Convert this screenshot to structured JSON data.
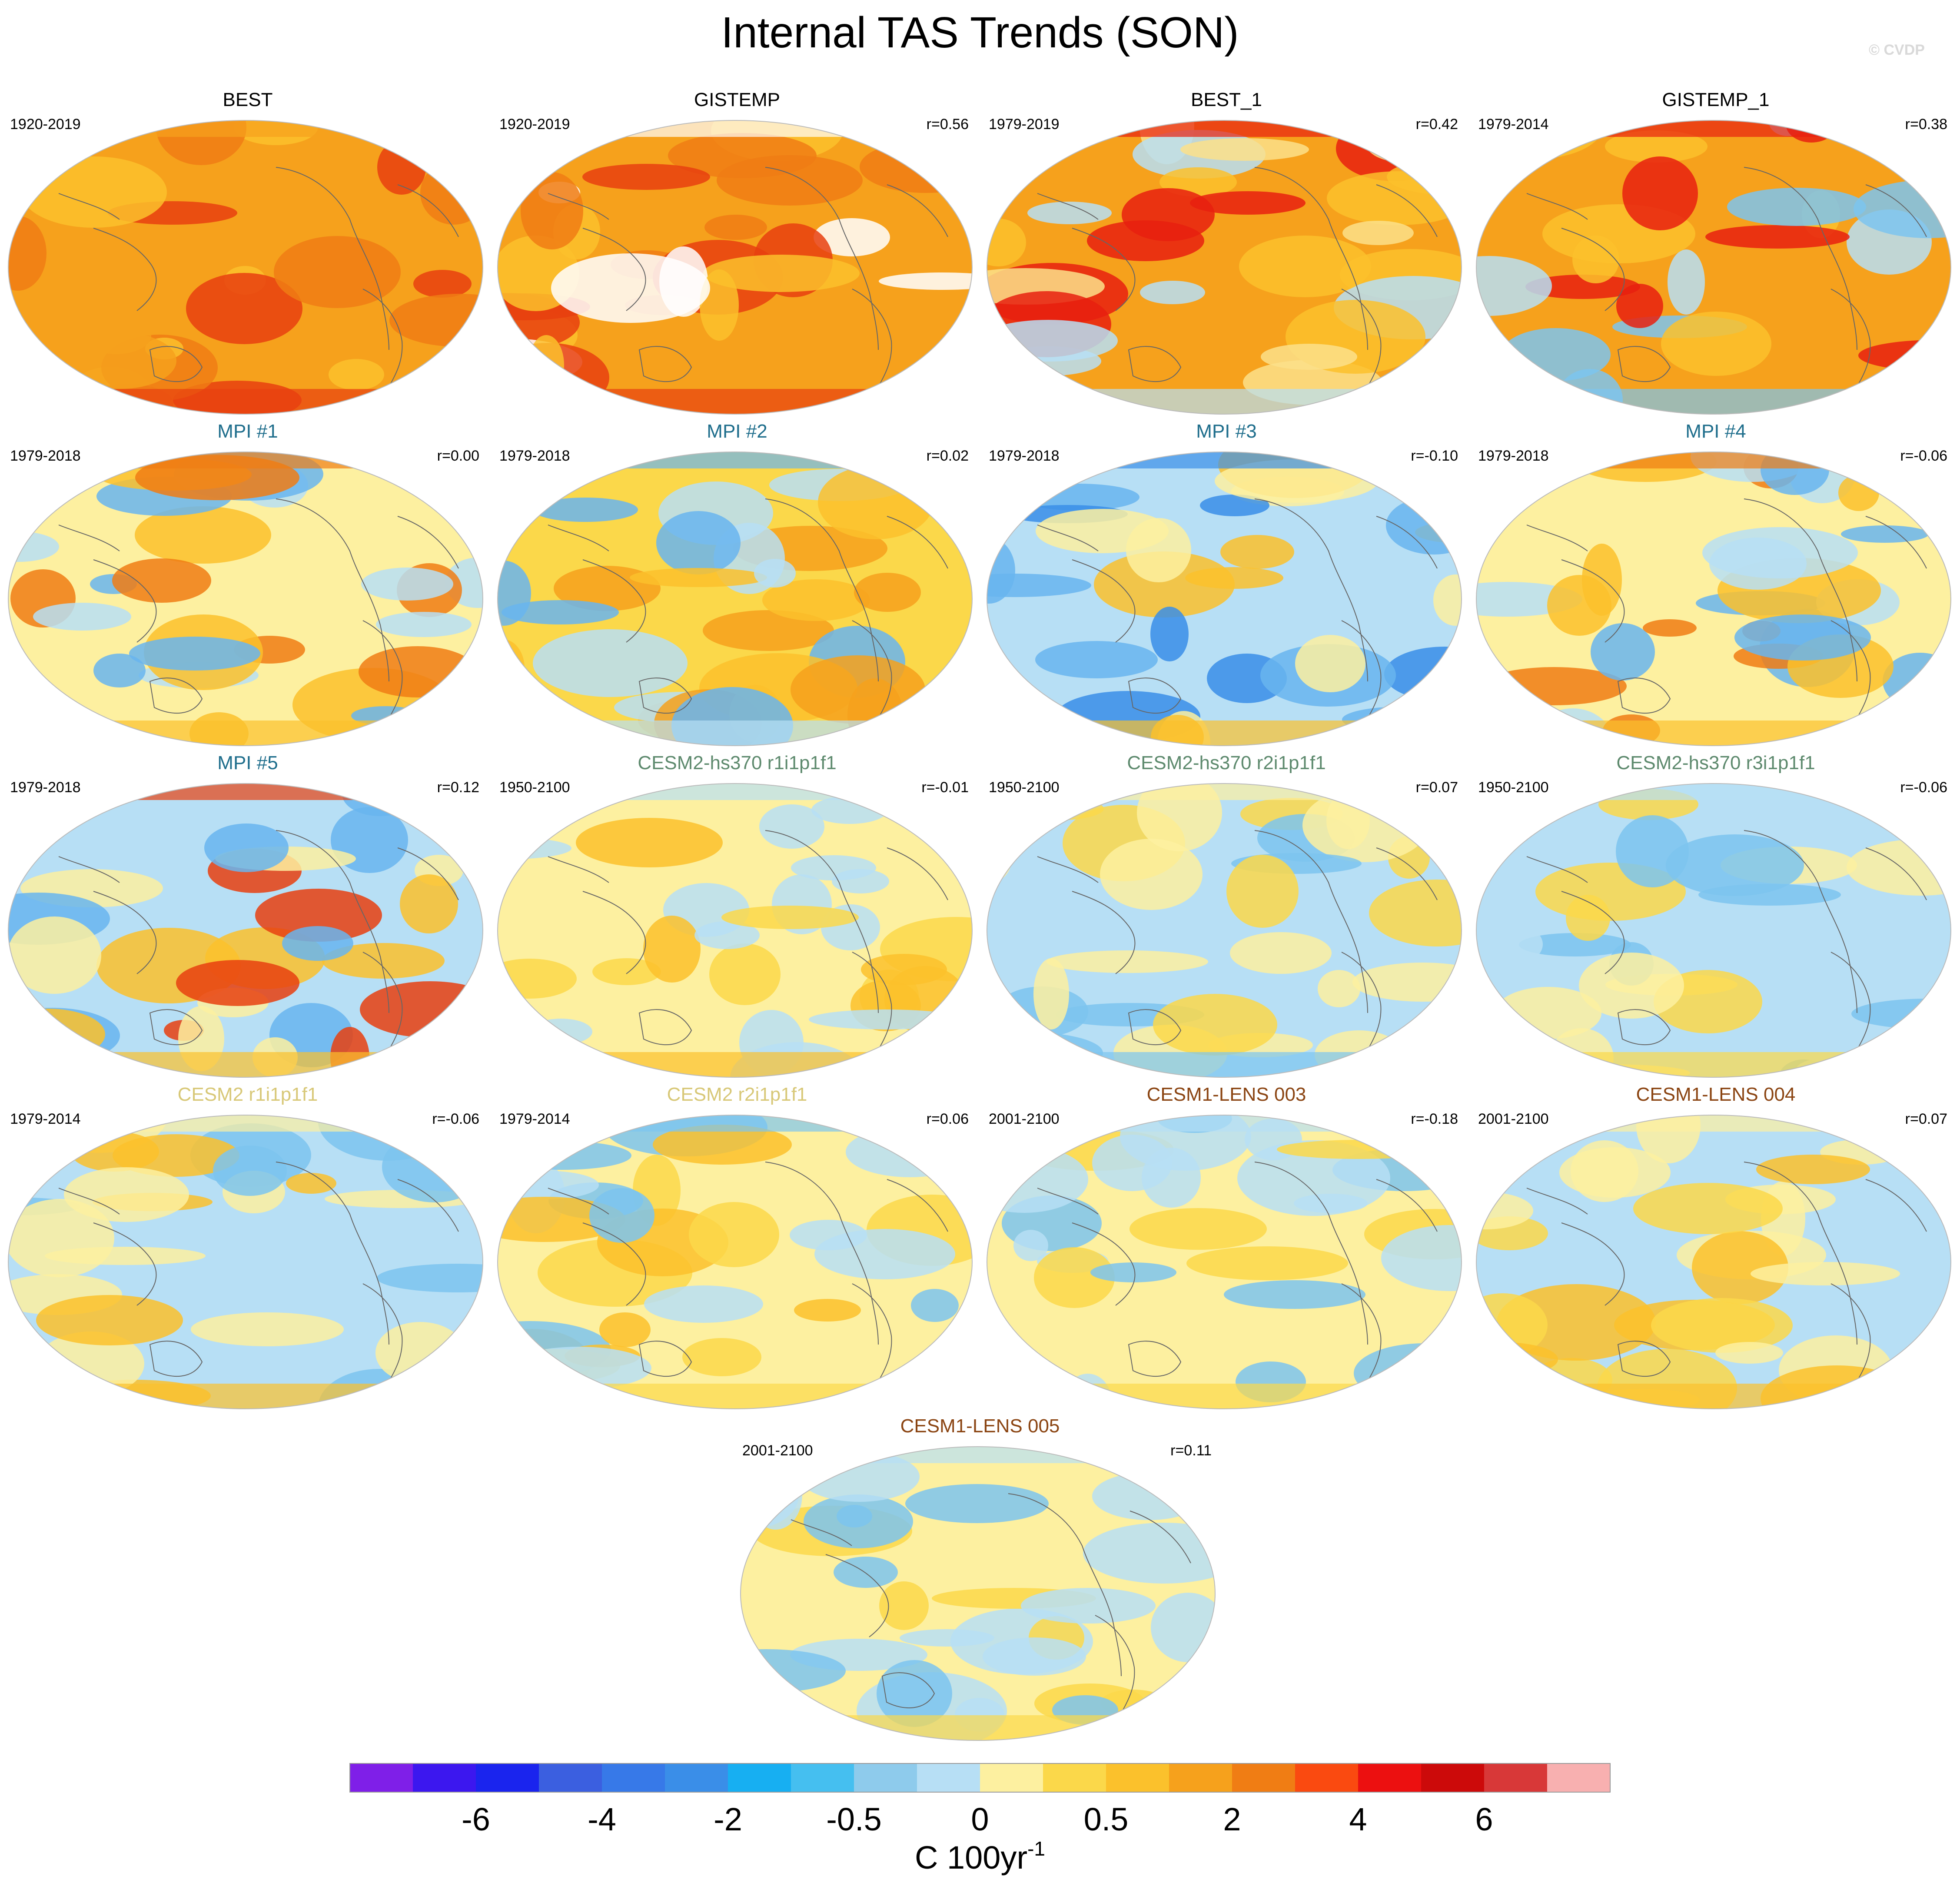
{
  "title": "Internal TAS Trends (SON)",
  "watermark": "© CVDP",
  "panels": [
    {
      "name": "BEST",
      "title_color": "#000000",
      "period": "1920-2019",
      "corr": "",
      "fill": "#f6a11c",
      "mottle": [
        "#fbc12c",
        "#f07d14",
        "#e8400f",
        "#f6a11c"
      ]
    },
    {
      "name": "GISTEMP",
      "title_color": "#000000",
      "period": "1920-2019",
      "corr": "r=0.56",
      "fill": "#f6a11c",
      "mottle": [
        "#fbc12c",
        "#f07d14",
        "#e8400f",
        "#ffffff"
      ]
    },
    {
      "name": "BEST_1",
      "title_color": "#000000",
      "period": "1979-2019",
      "corr": "r=0.42",
      "fill": "#f6a11c",
      "mottle": [
        "#fbc12c",
        "#fbe18a",
        "#b7dff5",
        "#e8200f"
      ]
    },
    {
      "name": "GISTEMP_1",
      "title_color": "#000000",
      "period": "1979-2014",
      "corr": "r=0.38",
      "fill": "#f6a11c",
      "mottle": [
        "#fbc12c",
        "#b7dff5",
        "#7cc4ef",
        "#e8200f"
      ]
    },
    {
      "name": "MPI #1",
      "title_color": "#1f6e8c",
      "period": "1979-2018",
      "corr": "r=0.00",
      "fill": "#fdf0a0",
      "mottle": [
        "#b7dff5",
        "#69b5ee",
        "#fbc12c",
        "#f07d14"
      ]
    },
    {
      "name": "MPI #2",
      "title_color": "#1f6e8c",
      "period": "1979-2018",
      "corr": "r=0.02",
      "fill": "#fbd84a",
      "mottle": [
        "#fbc12c",
        "#f6a11c",
        "#b7dff5",
        "#69b5ee"
      ]
    },
    {
      "name": "MPI #3",
      "title_color": "#1f6e8c",
      "period": "1979-2018",
      "corr": "r=-0.10",
      "fill": "#b7dff5",
      "mottle": [
        "#69b5ee",
        "#fdf0a0",
        "#fbc12c",
        "#3a8ee8"
      ]
    },
    {
      "name": "MPI #4",
      "title_color": "#1f6e8c",
      "period": "1979-2018",
      "corr": "r=-0.06",
      "fill": "#fdf0a0",
      "mottle": [
        "#b7dff5",
        "#69b5ee",
        "#fbc12c",
        "#f07d14"
      ]
    },
    {
      "name": "MPI #5",
      "title_color": "#1f6e8c",
      "period": "1979-2018",
      "corr": "r=0.12",
      "fill": "#b7dff5",
      "mottle": [
        "#fdf0a0",
        "#69b5ee",
        "#fbc12c",
        "#e8400f"
      ]
    },
    {
      "name": "CESM2-hs370 r1i1p1f1",
      "title_color": "#5e8a6e",
      "period": "1950-2100",
      "corr": "r=-0.01",
      "fill": "#fdf0a0",
      "mottle": [
        "#b7dff5",
        "#fbd84a",
        "#fbc12c",
        "#b7dff5"
      ]
    },
    {
      "name": "CESM2-hs370 r2i1p1f1",
      "title_color": "#5e8a6e",
      "period": "1950-2100",
      "corr": "r=0.07",
      "fill": "#b7dff5",
      "mottle": [
        "#fdf0a0",
        "#fbd84a",
        "#7cc4ef",
        "#fdf0a0"
      ]
    },
    {
      "name": "CESM2-hs370 r3i1p1f1",
      "title_color": "#5e8a6e",
      "period": "1950-2100",
      "corr": "r=-0.06",
      "fill": "#b7dff5",
      "mottle": [
        "#fdf0a0",
        "#7cc4ef",
        "#fbd84a",
        "#b7dff5"
      ]
    },
    {
      "name": "CESM2 r1i1p1f1",
      "title_color": "#d8c878",
      "period": "1979-2014",
      "corr": "r=-0.06",
      "fill": "#b7dff5",
      "mottle": [
        "#fdf0a0",
        "#7cc4ef",
        "#fbc12c",
        "#fdf0a0"
      ]
    },
    {
      "name": "CESM2 r2i1p1f1",
      "title_color": "#d8c878",
      "period": "1979-2014",
      "corr": "r=0.06",
      "fill": "#fdf0a0",
      "mottle": [
        "#b7dff5",
        "#fbc12c",
        "#fbd84a",
        "#7cc4ef"
      ]
    },
    {
      "name": "CESM1-LENS 003",
      "title_color": "#8b4513",
      "period": "2001-2100",
      "corr": "r=-0.18",
      "fill": "#fdf0a0",
      "mottle": [
        "#b7dff5",
        "#7cc4ef",
        "#fbd84a",
        "#b7dff5"
      ]
    },
    {
      "name": "CESM1-LENS 004",
      "title_color": "#8b4513",
      "period": "2001-2100",
      "corr": "r=0.07",
      "fill": "#b7dff5",
      "mottle": [
        "#fdf0a0",
        "#fbd84a",
        "#fbc12c",
        "#fdf0a0"
      ]
    },
    {
      "name": "CESM1-LENS 005",
      "title_color": "#8b4513",
      "period": "2001-2100",
      "corr": "r=0.11",
      "fill": "#fdf0a0",
      "mottle": [
        "#b7dff5",
        "#7cc4ef",
        "#fbd84a",
        "#b7dff5"
      ]
    }
  ],
  "colorbar": {
    "colors": [
      "#7f1fe8",
      "#3c17ef",
      "#1a24ee",
      "#3b5fe0",
      "#3779e8",
      "#3a8ee8",
      "#17aff2",
      "#45bff0",
      "#8ecbec",
      "#b7dff5",
      "#fdf0a0",
      "#fbd84a",
      "#fbc12c",
      "#f6a11c",
      "#f07d14",
      "#fa4a10",
      "#ec1010",
      "#cc0a0a",
      "#d83838",
      "#f8b0b0"
    ],
    "tick_labels": [
      "-6",
      "-4",
      "-2",
      "-0.5",
      "0",
      "0.5",
      "2",
      "4",
      "6"
    ],
    "unit_label": "C 100yr",
    "unit_exponent": "-1"
  }
}
